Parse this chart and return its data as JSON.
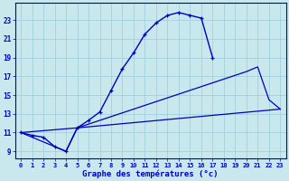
{
  "background_color": "#c8e8ee",
  "line_color": "#0000bb",
  "grid_color": "#99ccd8",
  "xlabel": "Graphe des températures (°c)",
  "x_ticks": [
    0,
    1,
    2,
    3,
    4,
    5,
    6,
    7,
    8,
    9,
    10,
    11,
    12,
    13,
    14,
    15,
    16,
    17,
    18,
    19,
    20,
    21,
    22,
    23
  ],
  "y_ticks": [
    9,
    11,
    13,
    15,
    17,
    19,
    21,
    23
  ],
  "ylim": [
    8.2,
    24.8
  ],
  "xlim": [
    -0.5,
    23.5
  ],
  "line1_x": [
    0,
    1,
    2,
    3,
    4,
    5,
    6,
    7,
    8,
    9,
    10,
    11,
    12,
    13,
    14,
    15,
    16,
    17
  ],
  "line1_y": [
    11.0,
    10.7,
    10.5,
    9.5,
    9.0,
    11.5,
    12.3,
    13.2,
    15.5,
    17.8,
    19.5,
    21.5,
    22.7,
    23.5,
    23.8,
    23.5,
    23.2,
    19.0
  ],
  "line2_x": [
    0,
    4,
    5,
    23
  ],
  "line2_y": [
    11.0,
    9.0,
    11.5,
    13.5
  ],
  "line3_x": [
    0,
    5,
    20,
    21,
    22,
    23
  ],
  "line3_y": [
    11.0,
    11.5,
    17.5,
    18.0,
    14.5,
    13.5
  ]
}
